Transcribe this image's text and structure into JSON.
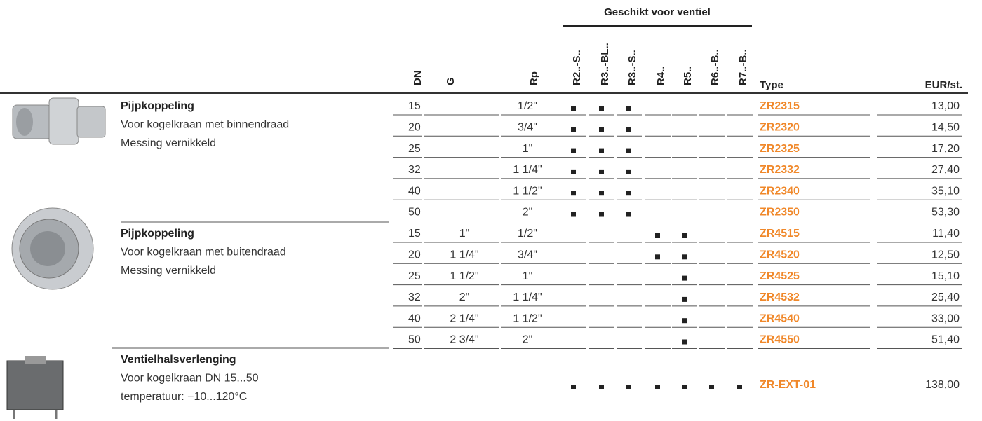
{
  "header": {
    "valve_group": "Geschikt voor ventiel",
    "columns": {
      "dn": "DN",
      "g": "G",
      "rp": "Rp",
      "valves": [
        "R2..-S..",
        "R3..-BL..",
        "R3..-S..",
        "R4..",
        "R5..",
        "R6..-B..",
        "R7..-B.."
      ],
      "type": "Type",
      "price": "EUR/st."
    }
  },
  "groups": [
    {
      "title": "Pijpkoppeling",
      "lines": [
        "Voor kogelkraan met binnendraad",
        "Messing vernikkeld"
      ],
      "rows": [
        {
          "dn": "15",
          "rp": "1/2\"",
          "valves": [
            true,
            true,
            true,
            false,
            false,
            false,
            false
          ],
          "type": "ZR2315",
          "price": "13,00"
        },
        {
          "dn": "20",
          "rp": "3/4\"",
          "valves": [
            true,
            true,
            true,
            false,
            false,
            false,
            false
          ],
          "type": "ZR2320",
          "price": "14,50"
        },
        {
          "dn": "25",
          "rp": "1\"",
          "valves": [
            true,
            true,
            true,
            false,
            false,
            false,
            false
          ],
          "type": "ZR2325",
          "price": "17,20"
        },
        {
          "dn": "32",
          "rp": "1 1/4\"",
          "valves": [
            true,
            true,
            true,
            false,
            false,
            false,
            false
          ],
          "type": "ZR2332",
          "price": "27,40"
        },
        {
          "dn": "40",
          "rp": "1 1/2\"",
          "valves": [
            true,
            true,
            true,
            false,
            false,
            false,
            false
          ],
          "type": "ZR2340",
          "price": "35,10"
        },
        {
          "dn": "50",
          "rp": "2\"",
          "valves": [
            true,
            true,
            true,
            false,
            false,
            false,
            false
          ],
          "type": "ZR2350",
          "price": "53,30"
        }
      ]
    },
    {
      "title": "Pijpkoppeling",
      "lines": [
        "Voor kogelkraan met buitendraad",
        "Messing vernikkeld"
      ],
      "rows": [
        {
          "dn": "15",
          "g": "1\"",
          "rp": "1/2\"",
          "valves": [
            false,
            false,
            false,
            true,
            true,
            false,
            false
          ],
          "type": "ZR4515",
          "price": "11,40"
        },
        {
          "dn": "20",
          "g": "1 1/4\"",
          "rp": "3/4\"",
          "valves": [
            false,
            false,
            false,
            true,
            true,
            false,
            false
          ],
          "type": "ZR4520",
          "price": "12,50"
        },
        {
          "dn": "25",
          "g": "1 1/2\"",
          "rp": "1\"",
          "valves": [
            false,
            false,
            false,
            false,
            true,
            false,
            false
          ],
          "type": "ZR4525",
          "price": "15,10"
        },
        {
          "dn": "32",
          "g": "2\"",
          "rp": "1 1/4\"",
          "valves": [
            false,
            false,
            false,
            false,
            true,
            false,
            false
          ],
          "type": "ZR4532",
          "price": "25,40"
        },
        {
          "dn": "40",
          "g": "2 1/4\"",
          "rp": "1 1/2\"",
          "valves": [
            false,
            false,
            false,
            false,
            true,
            false,
            false
          ],
          "type": "ZR4540",
          "price": "33,00"
        },
        {
          "dn": "50",
          "g": "2 3/4\"",
          "rp": "2\"",
          "valves": [
            false,
            false,
            false,
            false,
            true,
            false,
            false
          ],
          "type": "ZR4550",
          "price": "51,40"
        }
      ]
    },
    {
      "title": "Ventielhalsverlenging",
      "lines": [
        "Voor kogelkraan DN 15...50",
        "temperatuur: −10...120°C"
      ],
      "rows": [
        {
          "valves": [
            true,
            true,
            true,
            true,
            true,
            true,
            true
          ],
          "type": "ZR-EXT-01",
          "price": "138,00"
        }
      ]
    }
  ]
}
